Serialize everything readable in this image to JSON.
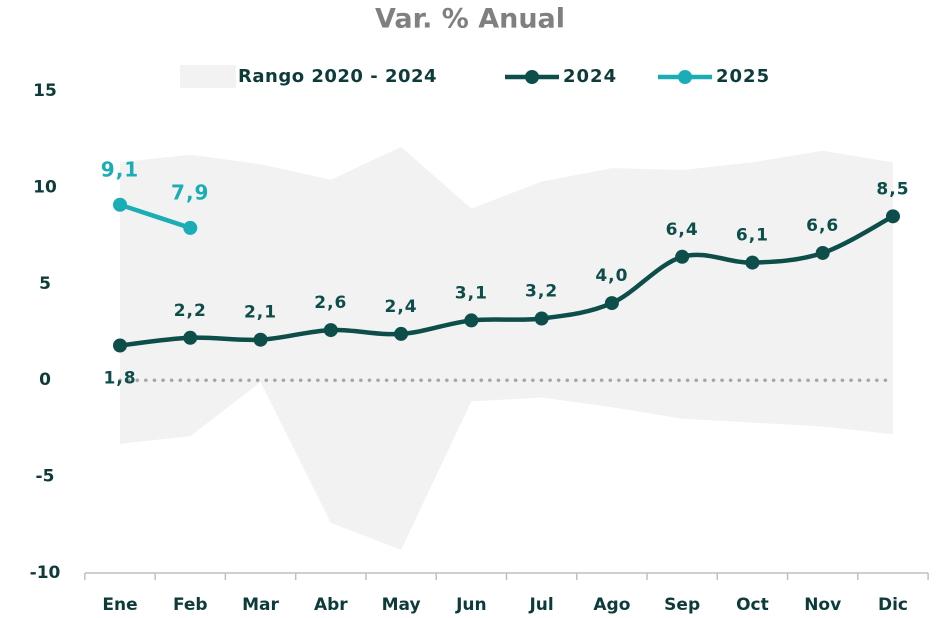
{
  "chart_data": {
    "type": "line",
    "title": "Var. % Anual",
    "categories": [
      "Ene",
      "Feb",
      "Mar",
      "Abr",
      "May",
      "Jun",
      "Jul",
      "Ago",
      "Sep",
      "Oct",
      "Nov",
      "Dic"
    ],
    "band": {
      "name": "Rango 2020 - 2024",
      "color": "#f2f2f2",
      "upper": [
        11.3,
        11.7,
        11.2,
        10.4,
        12.1,
        8.9,
        10.3,
        11.0,
        10.9,
        11.3,
        11.9,
        11.3
      ],
      "lower": [
        -3.3,
        -2.9,
        -0.1,
        -7.4,
        -8.8,
        -1.1,
        -0.9,
        -1.4,
        -2.0,
        -2.2,
        -2.4,
        -2.8
      ]
    },
    "series": [
      {
        "name": "2024",
        "color": "#0d4d4a",
        "values": [
          1.8,
          2.2,
          2.1,
          2.6,
          2.4,
          3.1,
          3.2,
          4.0,
          6.4,
          6.1,
          6.6,
          8.5
        ],
        "value_labels": [
          "1,8",
          "2,2",
          "2,1",
          "2,6",
          "2,4",
          "3,1",
          "3,2",
          "4,0",
          "6,4",
          "6,1",
          "6,6",
          "8,5"
        ]
      },
      {
        "name": "2025",
        "color": "#1aadb5",
        "values": [
          9.1,
          7.9,
          null,
          null,
          null,
          null,
          null,
          null,
          null,
          null,
          null,
          null
        ],
        "value_labels": [
          "9,1",
          "7,9",
          null,
          null,
          null,
          null,
          null,
          null,
          null,
          null,
          null,
          null
        ]
      }
    ],
    "ylim": [
      -10,
      15
    ],
    "yticks": [
      -10,
      -5,
      0,
      5,
      10,
      15
    ]
  }
}
